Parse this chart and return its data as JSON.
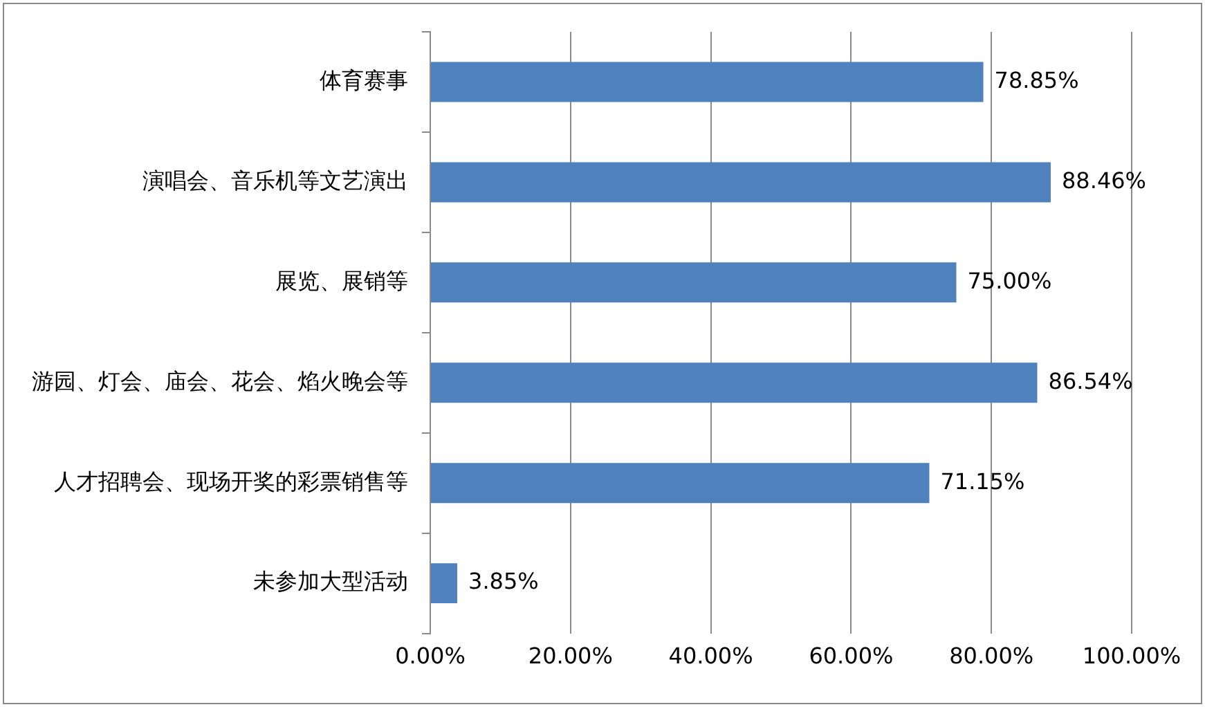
{
  "chart_data": {
    "type": "bar",
    "orientation": "horizontal",
    "categories": [
      "体育赛事",
      "演唱会、音乐机等文艺演出",
      "展览、展销等",
      "游园、灯会、庙会、花会、焰火晚会等",
      "人才招聘会、现场开奖的彩票销售等",
      "未参加大型活动"
    ],
    "values": [
      78.85,
      88.46,
      75.0,
      86.54,
      71.15,
      3.85
    ],
    "value_labels": [
      "78.85%",
      "88.46%",
      "75.00%",
      "86.54%",
      "71.15%",
      "3.85%"
    ],
    "color": "#4f81bd",
    "xlim": [
      0,
      100
    ],
    "xticks": [
      {
        "value": 0,
        "label": "0.00%"
      },
      {
        "value": 20,
        "label": "20.00%"
      },
      {
        "value": 40,
        "label": "40.00%"
      },
      {
        "value": 60,
        "label": "60.00%"
      },
      {
        "value": 80,
        "label": "80.00%"
      },
      {
        "value": 100,
        "label": "100.00%"
      }
    ],
    "grid": "x",
    "legend": false
  }
}
